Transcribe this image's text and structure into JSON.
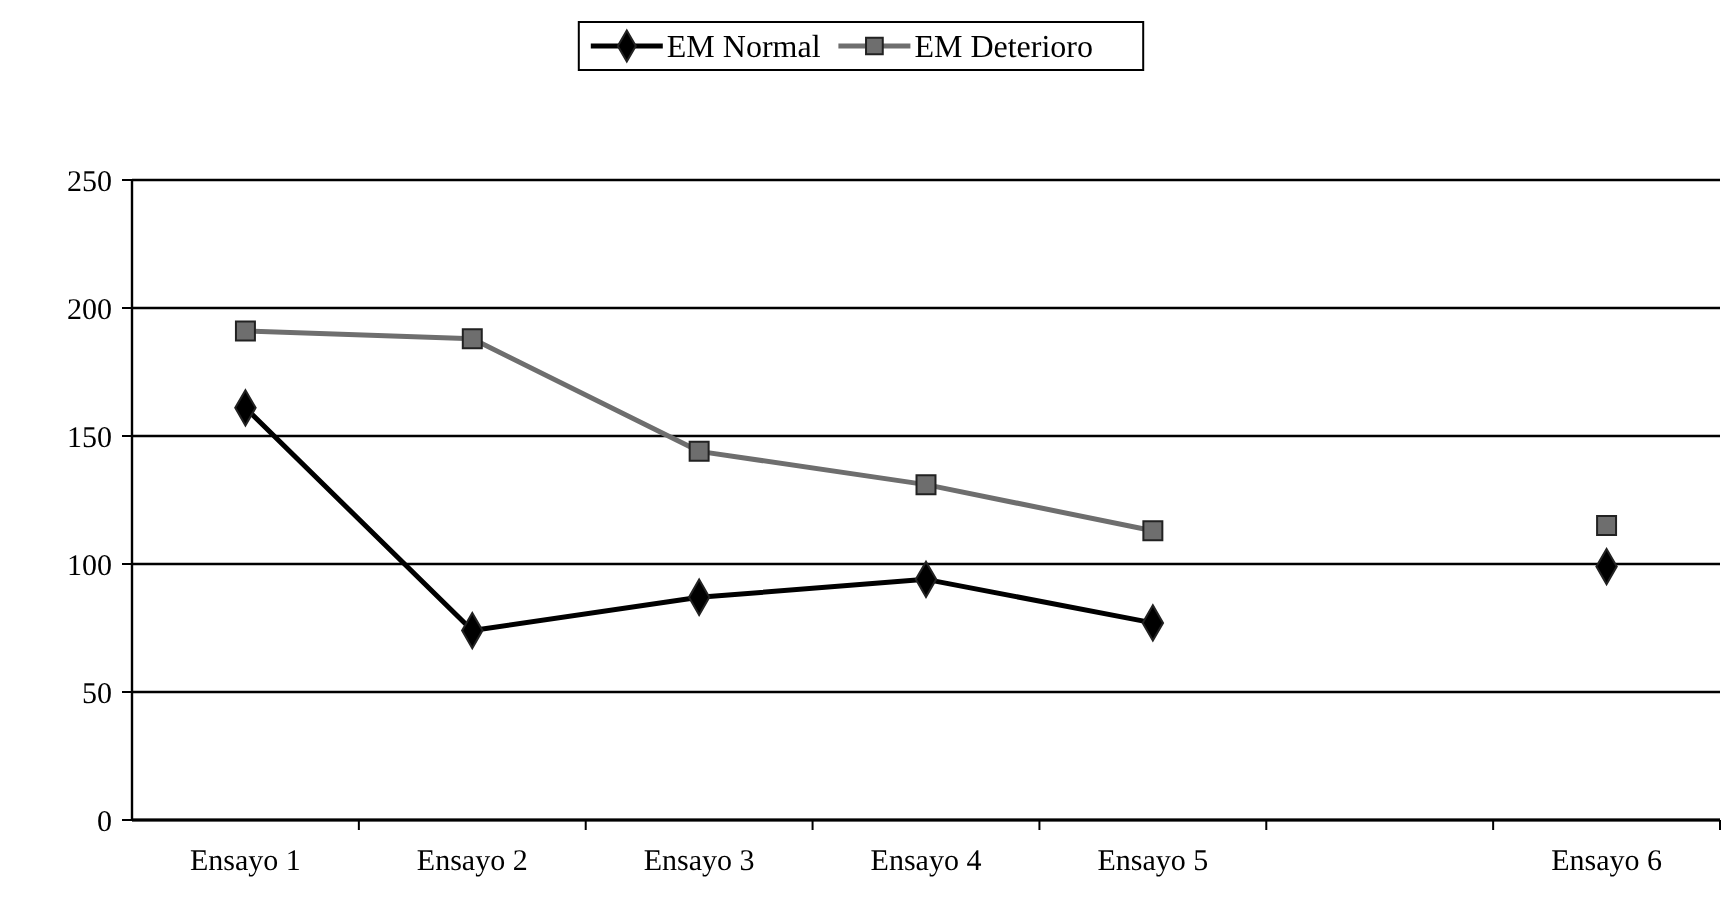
{
  "chart_data": {
    "type": "line",
    "categories": [
      "Ensayo 1",
      "Ensayo 2",
      "Ensayo 3",
      "Ensayo 4",
      "Ensayo 5",
      null,
      "Ensayo 6"
    ],
    "series": [
      {
        "name": "EM Normal",
        "color": "#000000",
        "marker": "diamond",
        "values": [
          161,
          74,
          87,
          94,
          77,
          null,
          99
        ]
      },
      {
        "name": "EM Deterioro",
        "color": "#6e6e6e",
        "marker": "square",
        "values": [
          191,
          188,
          144,
          131,
          113,
          null,
          115
        ]
      }
    ],
    "ylim": [
      0,
      250
    ],
    "yticks": [
      0,
      50,
      100,
      150,
      200,
      250
    ],
    "grid": "y",
    "legend": "top",
    "line_style": "solid"
  }
}
